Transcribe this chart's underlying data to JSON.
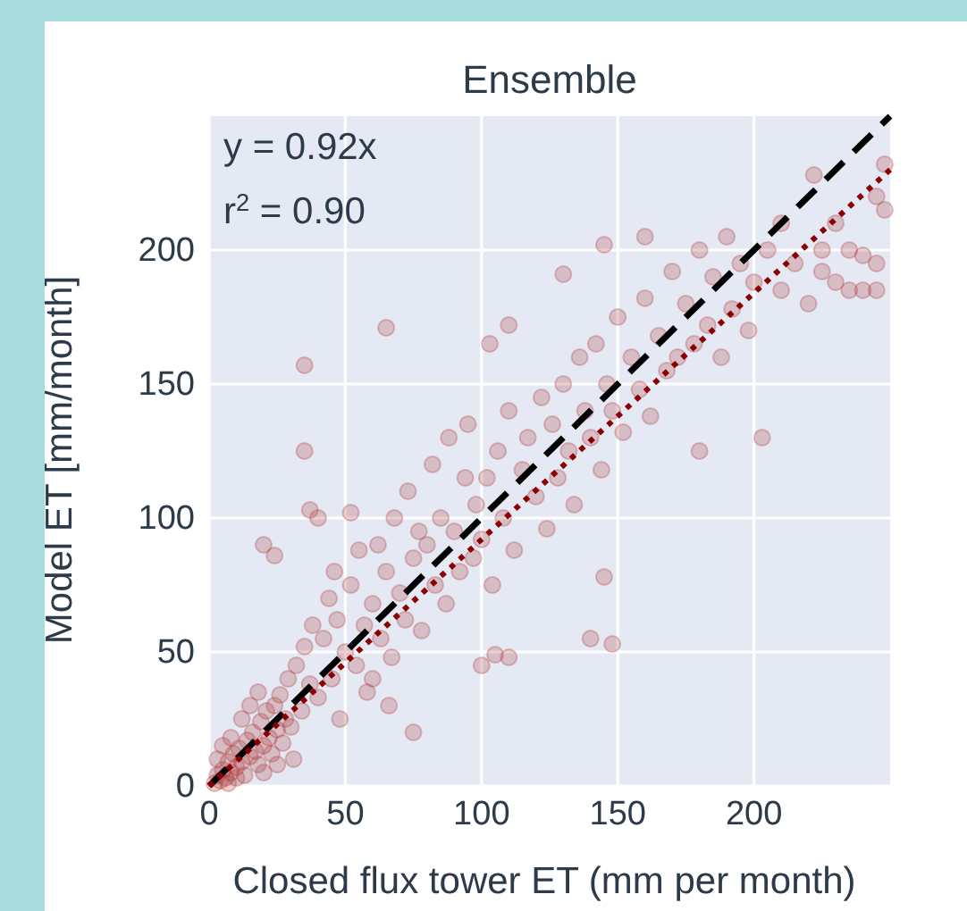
{
  "chart_data": {
    "type": "scatter",
    "title": "Ensemble",
    "xlabel": "Closed flux tower ET (mm per month)",
    "ylabel": "Model ET [mm/month]",
    "annotations": [
      "y = 0.92x",
      "r$^{2}$ = 0.90"
    ],
    "xlim": [
      0,
      250
    ],
    "ylim": [
      0,
      250
    ],
    "xticks": [
      0,
      50,
      100,
      150,
      200
    ],
    "yticks": [
      0,
      50,
      100,
      150,
      200
    ],
    "grid": true,
    "marker": "circle",
    "series": [
      {
        "color": "#b03a3a",
        "x": [
          2,
          3,
          4,
          5,
          6,
          7,
          8,
          9,
          10,
          11,
          12,
          13,
          14,
          15,
          16,
          17,
          18,
          19,
          20,
          21,
          22,
          23,
          24,
          25,
          26,
          27,
          28,
          29,
          30,
          31,
          5,
          8,
          12,
          15,
          18,
          10,
          20,
          25,
          3,
          7,
          32,
          34,
          35,
          37,
          38,
          40,
          42,
          44,
          45,
          47,
          48,
          50,
          52,
          54,
          55,
          57,
          58,
          60,
          62,
          63,
          65,
          67,
          68,
          70,
          72,
          73,
          75,
          77,
          78,
          80,
          82,
          83,
          85,
          87,
          88,
          90,
          92,
          94,
          95,
          97,
          98,
          100,
          46,
          52,
          60,
          66,
          102,
          104,
          106,
          108,
          110,
          112,
          115,
          117,
          120,
          122,
          124,
          126,
          128,
          130,
          132,
          134,
          136,
          138,
          140,
          142,
          144,
          146,
          148,
          150,
          152,
          155,
          158,
          160,
          162,
          165,
          168,
          170,
          172,
          175,
          178,
          180,
          183,
          185,
          188,
          190,
          192,
          195,
          198,
          200,
          205,
          210,
          215,
          220,
          225,
          230,
          235,
          240,
          245,
          248,
          35,
          65,
          35,
          103,
          110,
          130,
          145,
          160,
          203,
          180,
          145,
          140,
          148,
          75,
          100,
          105,
          110,
          37,
          40,
          20,
          24,
          225,
          245,
          245,
          235,
          240,
          222,
          248,
          230,
          210
        ],
        "values": [
          1,
          4,
          2,
          6,
          3,
          9,
          5,
          12,
          7,
          14,
          9,
          4,
          17,
          11,
          20,
          13,
          8,
          24,
          15,
          28,
          18,
          12,
          30,
          21,
          34,
          16,
          25,
          40,
          22,
          10,
          15,
          18,
          25,
          30,
          35,
          3,
          5,
          8,
          10,
          1,
          45,
          28,
          52,
          38,
          60,
          33,
          55,
          70,
          40,
          62,
          25,
          50,
          75,
          45,
          88,
          60,
          35,
          68,
          90,
          55,
          80,
          48,
          100,
          72,
          62,
          110,
          85,
          95,
          58,
          90,
          120,
          75,
          100,
          68,
          130,
          95,
          80,
          115,
          135,
          85,
          105,
          92,
          80,
          102,
          40,
          30,
          115,
          75,
          125,
          100,
          140,
          88,
          118,
          130,
          108,
          145,
          96,
          135,
          115,
          150,
          125,
          105,
          160,
          140,
          130,
          165,
          118,
          150,
          140,
          175,
          132,
          160,
          148,
          182,
          138,
          168,
          155,
          192,
          160,
          180,
          165,
          200,
          172,
          190,
          160,
          205,
          178,
          195,
          170,
          188,
          200,
          185,
          195,
          180,
          192,
          188,
          200,
          185,
          195,
          215,
          157,
          171,
          125,
          165,
          172,
          191,
          202,
          205,
          130,
          125,
          78,
          55,
          53,
          20,
          45,
          49,
          48,
          103,
          100,
          90,
          86,
          200,
          220,
          185,
          185,
          198,
          228,
          232,
          210,
          210
        ]
      },
      {
        "type": "line",
        "marker": "none",
        "color": "#000000",
        "line_style": "dashed",
        "x": [
          0,
          250
        ],
        "values": [
          0,
          250
        ]
      },
      {
        "type": "line",
        "marker": "none",
        "color": "#8b0000",
        "line_style": "dotted",
        "x": [
          0,
          250
        ],
        "values": [
          0,
          230
        ]
      }
    ]
  }
}
